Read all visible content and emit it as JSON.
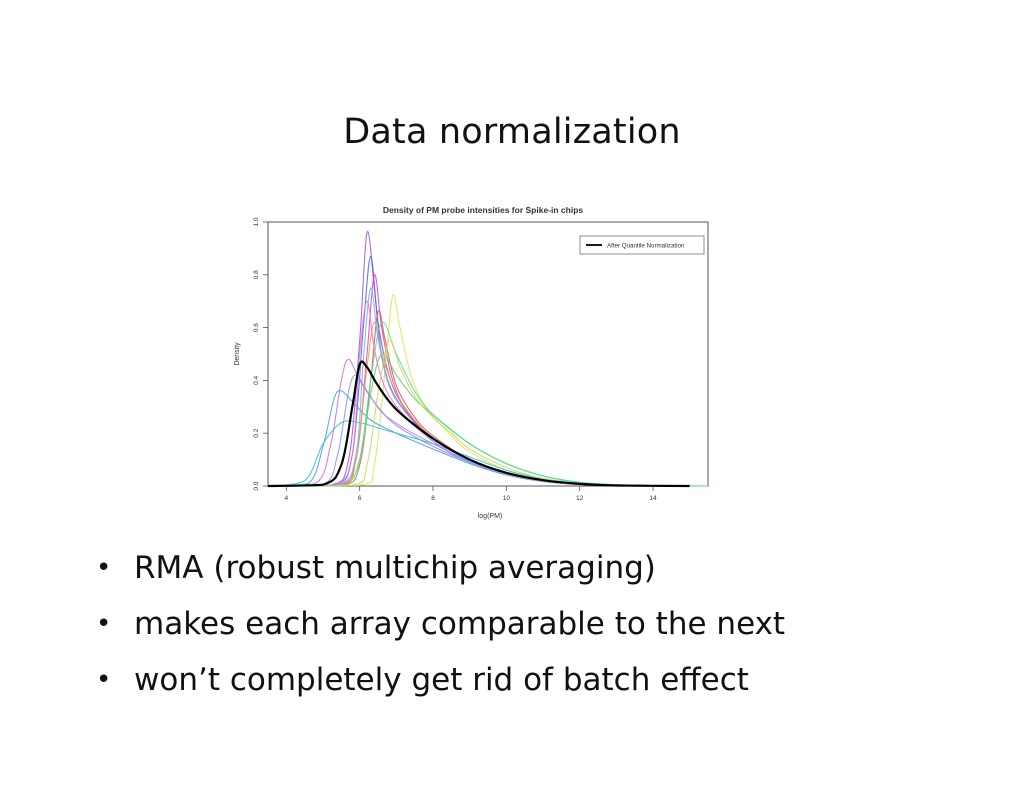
{
  "slide": {
    "title": "Data normalization",
    "bullets": [
      "RMA (robust multichip averaging)",
      "makes each array comparable to the next",
      "won’t completely get rid of batch effect"
    ]
  },
  "chart_data": {
    "type": "line",
    "title": "Density of PM probe intensities for Spike-in chips",
    "xlabel": "log(PM)",
    "ylabel": "Density",
    "xlim": [
      3.5,
      15.5
    ],
    "ylim": [
      0,
      1.0
    ],
    "xticks": [
      4,
      6,
      8,
      10,
      12,
      14
    ],
    "yticks": [
      0.0,
      0.2,
      0.4,
      0.6,
      0.8,
      1.0
    ],
    "grid": false,
    "legend": {
      "position": "top-right",
      "entries": [
        "After Quantile Normalization"
      ]
    },
    "highlight_color": "#000000",
    "series": [
      {
        "name": "After Quantile Normalization",
        "color": "#000000",
        "x": [
          3.5,
          5.0,
          5.5,
          5.8,
          6.0,
          6.2,
          6.5,
          7.0,
          8.0,
          9.0,
          10.0,
          11.0,
          12.0,
          13.0,
          15.0
        ],
        "y": [
          0,
          0.005,
          0.08,
          0.3,
          0.46,
          0.45,
          0.38,
          0.29,
          0.18,
          0.1,
          0.05,
          0.022,
          0.008,
          0.002,
          0
        ]
      },
      {
        "color": "#a050e0",
        "x": [
          3.5,
          5.2,
          5.7,
          6.0,
          6.2,
          6.4,
          6.6,
          7.0,
          8.0,
          9.0,
          10.0,
          11.0,
          12.0,
          13.0,
          15.0
        ],
        "y": [
          0,
          0.003,
          0.1,
          0.55,
          0.96,
          0.75,
          0.5,
          0.33,
          0.18,
          0.1,
          0.05,
          0.02,
          0.007,
          0.002,
          0
        ]
      },
      {
        "color": "#4a6adf",
        "x": [
          3.5,
          5.3,
          5.8,
          6.1,
          6.3,
          6.5,
          6.8,
          7.2,
          8.0,
          9.0,
          10.0,
          11.0,
          12.0,
          13.0,
          15.0
        ],
        "y": [
          0,
          0.003,
          0.12,
          0.6,
          0.87,
          0.62,
          0.42,
          0.3,
          0.17,
          0.09,
          0.045,
          0.018,
          0.006,
          0.002,
          0
        ]
      },
      {
        "color": "#e040c0",
        "x": [
          3.5,
          5.4,
          5.9,
          6.2,
          6.4,
          6.6,
          6.9,
          7.3,
          8.0,
          9.0,
          10.0,
          11.0,
          12.0,
          13.0,
          15.0
        ],
        "y": [
          0,
          0.003,
          0.1,
          0.5,
          0.8,
          0.6,
          0.4,
          0.28,
          0.17,
          0.09,
          0.045,
          0.018,
          0.006,
          0.002,
          0
        ]
      },
      {
        "color": "#e05050",
        "x": [
          3.5,
          5.5,
          6.0,
          6.3,
          6.5,
          6.7,
          7.0,
          7.5,
          8.0,
          9.0,
          10.0,
          11.0,
          12.0,
          13.0,
          15.0
        ],
        "y": [
          0,
          0.003,
          0.08,
          0.4,
          0.66,
          0.55,
          0.38,
          0.26,
          0.19,
          0.1,
          0.05,
          0.02,
          0.007,
          0.002,
          0
        ]
      },
      {
        "color": "#e0e050",
        "x": [
          3.5,
          6.0,
          6.4,
          6.7,
          6.9,
          7.1,
          7.4,
          7.8,
          8.5,
          9.0,
          10.0,
          11.0,
          12.0,
          13.0,
          15.0
        ],
        "y": [
          0,
          0.003,
          0.08,
          0.45,
          0.72,
          0.6,
          0.42,
          0.3,
          0.19,
          0.13,
          0.06,
          0.025,
          0.008,
          0.002,
          0
        ]
      },
      {
        "color": "#c070e0",
        "x": [
          3.5,
          4.8,
          5.2,
          5.5,
          5.7,
          6.0,
          6.5,
          7.0,
          8.0,
          9.0,
          10.0,
          11.0,
          12.0,
          13.0,
          15.0
        ],
        "y": [
          0,
          0.01,
          0.15,
          0.4,
          0.48,
          0.4,
          0.3,
          0.23,
          0.15,
          0.09,
          0.045,
          0.018,
          0.006,
          0.002,
          0
        ]
      },
      {
        "color": "#40a0e0",
        "x": [
          3.5,
          4.6,
          5.0,
          5.3,
          5.5,
          5.8,
          6.3,
          7.0,
          8.0,
          9.0,
          10.0,
          11.0,
          12.0,
          13.0,
          15.0
        ],
        "y": [
          0,
          0.01,
          0.15,
          0.33,
          0.36,
          0.32,
          0.25,
          0.2,
          0.14,
          0.085,
          0.042,
          0.017,
          0.006,
          0.002,
          0
        ]
      },
      {
        "color": "#30c0d0",
        "x": [
          3.5,
          4.5,
          5.0,
          5.5,
          6.0,
          6.5,
          7.0,
          8.0,
          9.0,
          10.0,
          11.0,
          12.0,
          13.0,
          14.0,
          15.5
        ],
        "y": [
          0,
          0.02,
          0.16,
          0.24,
          0.24,
          0.22,
          0.2,
          0.16,
          0.11,
          0.06,
          0.028,
          0.011,
          0.004,
          0.001,
          0
        ]
      },
      {
        "color": "#60d060",
        "x": [
          3.5,
          5.5,
          6.0,
          6.3,
          6.6,
          7.0,
          7.5,
          8.0,
          9.0,
          10.0,
          11.0,
          12.0,
          13.0,
          14.0,
          15.5
        ],
        "y": [
          0,
          0.003,
          0.1,
          0.35,
          0.5,
          0.42,
          0.33,
          0.27,
          0.16,
          0.085,
          0.038,
          0.014,
          0.005,
          0.001,
          0
        ]
      },
      {
        "color": "#50e090",
        "x": [
          3.5,
          5.6,
          6.0,
          6.3,
          6.6,
          7.0,
          7.5,
          8.0,
          9.0,
          10.0,
          11.0,
          12.0,
          13.0,
          14.0,
          15.5
        ],
        "y": [
          0,
          0.003,
          0.1,
          0.4,
          0.62,
          0.5,
          0.36,
          0.27,
          0.16,
          0.085,
          0.038,
          0.014,
          0.005,
          0.001,
          0
        ]
      },
      {
        "color": "#f0a040",
        "x": [
          3.5,
          5.5,
          5.9,
          6.2,
          6.4,
          6.6,
          7.0,
          7.5,
          8.0,
          9.0,
          10.0,
          11.0,
          12.0,
          13.0,
          15.0
        ],
        "y": [
          0,
          0.003,
          0.1,
          0.45,
          0.62,
          0.5,
          0.35,
          0.25,
          0.18,
          0.1,
          0.05,
          0.02,
          0.007,
          0.002,
          0
        ]
      },
      {
        "color": "#9090f0",
        "x": [
          3.5,
          5.0,
          5.4,
          5.7,
          5.9,
          6.2,
          6.6,
          7.2,
          8.0,
          9.0,
          10.0,
          11.0,
          12.0,
          13.0,
          15.0
        ],
        "y": [
          0,
          0.005,
          0.12,
          0.36,
          0.42,
          0.36,
          0.28,
          0.22,
          0.16,
          0.095,
          0.047,
          0.019,
          0.007,
          0.002,
          0
        ]
      },
      {
        "color": "#f070d0",
        "x": [
          3.5,
          5.3,
          5.8,
          6.0,
          6.2,
          6.4,
          6.7,
          7.2,
          8.0,
          9.0,
          10.0,
          11.0,
          12.0,
          13.0,
          15.0
        ],
        "y": [
          0,
          0.003,
          0.12,
          0.5,
          0.7,
          0.52,
          0.37,
          0.27,
          0.17,
          0.09,
          0.045,
          0.018,
          0.006,
          0.002,
          0
        ]
      },
      {
        "color": "#70b0f0",
        "x": [
          3.5,
          5.4,
          5.9,
          6.1,
          6.3,
          6.5,
          6.8,
          7.3,
          8.0,
          9.0,
          10.0,
          11.0,
          12.0,
          13.0,
          15.0
        ],
        "y": [
          0,
          0.003,
          0.12,
          0.48,
          0.75,
          0.56,
          0.38,
          0.27,
          0.17,
          0.09,
          0.045,
          0.018,
          0.006,
          0.002,
          0
        ]
      },
      {
        "color": "#d0d060",
        "x": [
          3.5,
          5.8,
          6.2,
          6.5,
          6.8,
          7.1,
          7.5,
          8.0,
          8.5,
          9.0,
          10.0,
          11.0,
          12.0,
          13.0,
          15.0
        ],
        "y": [
          0,
          0.003,
          0.08,
          0.35,
          0.55,
          0.45,
          0.34,
          0.26,
          0.2,
          0.14,
          0.07,
          0.028,
          0.009,
          0.002,
          0
        ]
      }
    ]
  }
}
